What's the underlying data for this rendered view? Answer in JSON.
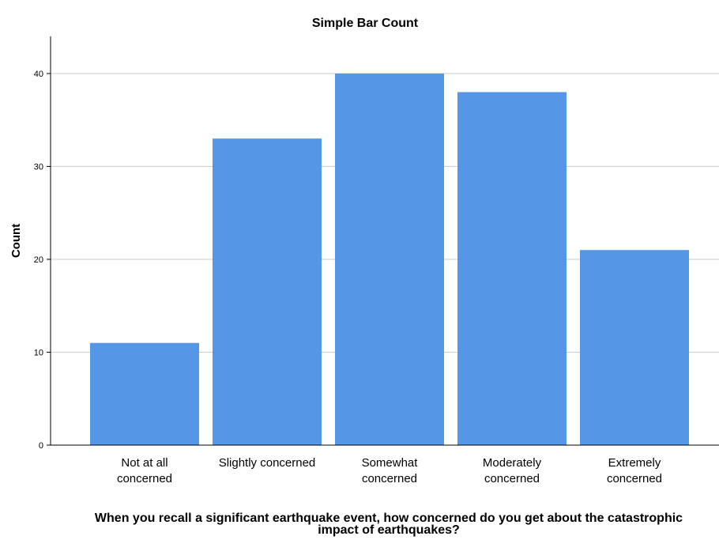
{
  "chart_data": {
    "type": "bar",
    "title": "Simple Bar Count",
    "xlabel": "When you recall a significant earthquake event, how concerned do you get about the catastrophic impact of earthquakes?",
    "ylabel": "Count",
    "categories": [
      "Not at all concerned",
      "Slightly concerned",
      "Somewhat concerned",
      "Moderately concerned",
      "Extremely concerned"
    ],
    "values": [
      11,
      33,
      40,
      38,
      21
    ],
    "ylim": [
      0,
      44
    ],
    "yticks": [
      0,
      10,
      20,
      30,
      40
    ],
    "grid": true,
    "bar_color": "#5596e6",
    "grid_color": "#cccccc"
  }
}
